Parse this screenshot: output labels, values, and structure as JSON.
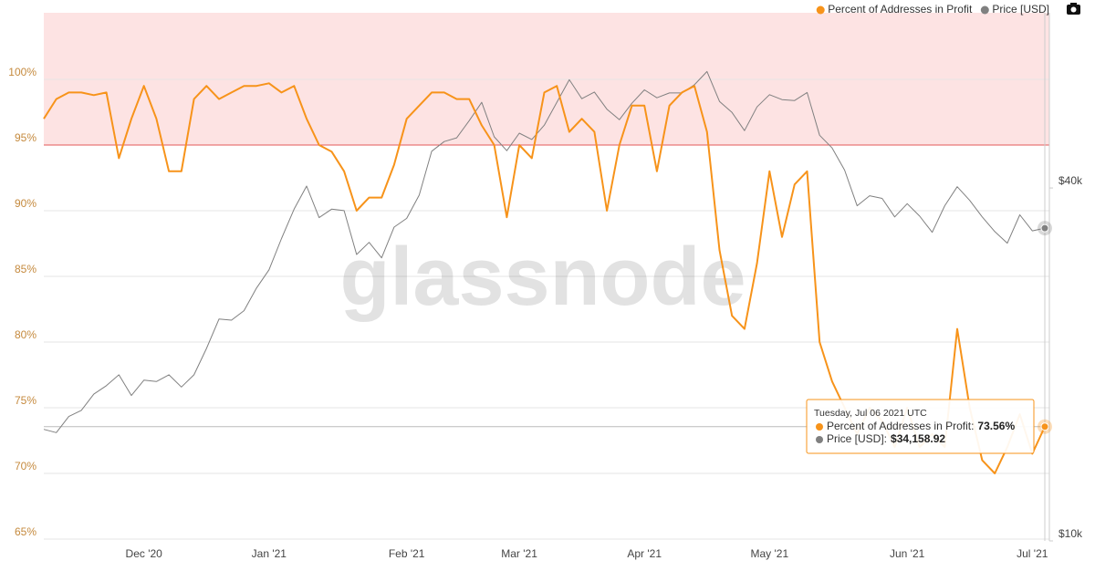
{
  "chart_data": {
    "type": "line",
    "watermark": "glassnode",
    "categories": [
      null,
      null,
      null,
      null,
      null,
      null,
      null,
      null,
      "Dec '20",
      null,
      null,
      null,
      null,
      null,
      null,
      null,
      null,
      null,
      "Jan '21",
      null,
      null,
      null,
      null,
      null,
      null,
      null,
      null,
      null,
      null,
      "Feb '21",
      null,
      null,
      null,
      null,
      null,
      null,
      null,
      null,
      "Mar '21",
      null,
      null,
      null,
      null,
      null,
      null,
      null,
      null,
      null,
      "Apr '21",
      null,
      null,
      null,
      null,
      null,
      null,
      null,
      null,
      null,
      "May '21",
      null,
      null,
      null,
      null,
      null,
      null,
      null,
      null,
      null,
      null,
      "Jun '21",
      null,
      null,
      null,
      null,
      null,
      null,
      null,
      null,
      null,
      "Jul '21",
      null
    ],
    "series": [
      {
        "name": "Percent of Addresses in Profit",
        "color": "#f7931a",
        "values": [
          97,
          98.5,
          99,
          99,
          98.8,
          99,
          94,
          97,
          99.5,
          97,
          93,
          93,
          98.5,
          99.5,
          98.5,
          99,
          99.5,
          99.5,
          99.7,
          99,
          99.5,
          97,
          95,
          94.5,
          93,
          90,
          91,
          91,
          93.5,
          97,
          98,
          99,
          99,
          98.5,
          98.5,
          96.5,
          95,
          89.5,
          95,
          94,
          99,
          99.5,
          96,
          97,
          96,
          90,
          95,
          98,
          98,
          93,
          98,
          99,
          99.5,
          96,
          87,
          82,
          81,
          86,
          93,
          88,
          92,
          93,
          80,
          77,
          75,
          73,
          75,
          74,
          72,
          75,
          72,
          73,
          72,
          81,
          75,
          71,
          70,
          72,
          74.5,
          71.5,
          73.56
        ]
      },
      {
        "name": "Price [USD]",
        "color": "#808080",
        "axis": "y2",
        "values": [
          15500,
          15300,
          16300,
          16700,
          17800,
          18400,
          19200,
          17700,
          18800,
          18700,
          19200,
          18300,
          19200,
          21300,
          23900,
          23800,
          24700,
          27000,
          29000,
          32800,
          36800,
          40300,
          35600,
          36800,
          36600,
          30800,
          32300,
          30400,
          34300,
          35500,
          38900,
          46200,
          48000,
          48700,
          52100,
          56000,
          48900,
          46300,
          49600,
          48400,
          51200,
          56000,
          61200,
          56800,
          58300,
          54500,
          52300,
          55800,
          58800,
          57000,
          58100,
          58100,
          60000,
          63200,
          56200,
          53800,
          50100,
          55000,
          57700,
          56600,
          56400,
          58200,
          49200,
          46800,
          42900,
          37300,
          38800,
          38400,
          35700,
          37600,
          35800,
          33600,
          37300,
          40200,
          38100,
          35700,
          33700,
          32200,
          36000,
          33800,
          34158.92
        ]
      }
    ],
    "ylim": [
      64.86,
      105.07
    ],
    "yticks": [
      {
        "value": 65,
        "label": "65%"
      },
      {
        "value": 70,
        "label": "70%"
      },
      {
        "value": 75,
        "label": "75%"
      },
      {
        "value": 80,
        "label": "80%"
      },
      {
        "value": 85,
        "label": "85%"
      },
      {
        "value": 90,
        "label": "90%"
      },
      {
        "value": 95,
        "label": "95%"
      },
      {
        "value": 100,
        "label": "100%"
      }
    ],
    "y2lim": [
      10000,
      79600
    ],
    "y2ticks": [
      {
        "value": 10000,
        "label": "$10k"
      },
      {
        "value": 40000,
        "label": "$40k"
      }
    ],
    "y2_log": true,
    "grid": true,
    "band_from": 95,
    "band_color": "#fde3e3",
    "legend": "top-right",
    "tooltip": {
      "title": "Tuesday, Jul 06 2021 UTC",
      "rows": [
        {
          "label": "Percent of Addresses in Profit:",
          "value": "73.56%"
        },
        {
          "label": "Price [USD]:",
          "value": "$34,158.92"
        }
      ]
    }
  }
}
